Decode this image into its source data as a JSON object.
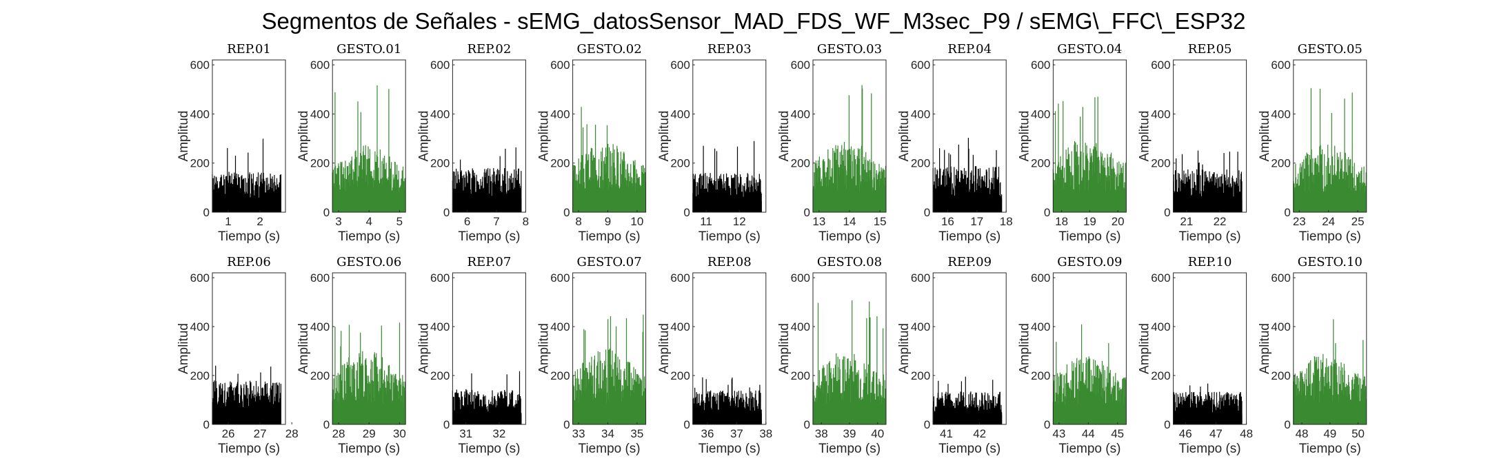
{
  "figure_title": "Segmentos de Señales - sEMG_datosSensor_MAD_FDS_WF_M3sec_P9 / sEMG\\_FFC\\_ESP32",
  "colors": {
    "rep": "#000000",
    "gesto": "#3a8a32",
    "axis": "#262626"
  },
  "chart_data": [
    {
      "type": "bar",
      "title": "REP_01",
      "kind": "rep",
      "xlim": [
        0.5,
        2.8
      ],
      "xticks": [
        1,
        2
      ],
      "ylim": [
        0,
        620
      ],
      "yticks": [
        0,
        200,
        400,
        600
      ],
      "xlabel": "Tiempo (s)",
      "ylabel": "Amplitud",
      "envelope": {
        "base": 55,
        "noise": 110,
        "peak": 300
      },
      "seed": 11
    },
    {
      "type": "bar",
      "title": "GESTO_01",
      "kind": "gesto",
      "xlim": [
        2.8,
        5.2
      ],
      "xticks": [
        3,
        4,
        5
      ],
      "ylim": [
        0,
        620
      ],
      "yticks": [
        0,
        200,
        400,
        600
      ],
      "xlabel": "Tiempo (s)",
      "ylabel": "Amplitud",
      "envelope": {
        "base": 80,
        "noise": 200,
        "peak": 520
      },
      "seed": 12
    },
    {
      "type": "bar",
      "title": "REP_02",
      "kind": "rep",
      "xlim": [
        5.5,
        8.0
      ],
      "xticks": [
        6,
        7,
        8
      ],
      "ylim": [
        0,
        620
      ],
      "yticks": [
        0,
        200,
        400,
        600
      ],
      "xlabel": "Tiempo (s)",
      "ylabel": "Amplitud",
      "envelope": {
        "base": 60,
        "noise": 120,
        "peak": 285
      },
      "seed": 13
    },
    {
      "type": "bar",
      "title": "GESTO_02",
      "kind": "gesto",
      "xlim": [
        7.8,
        10.3
      ],
      "xticks": [
        8,
        9,
        10
      ],
      "ylim": [
        0,
        620
      ],
      "yticks": [
        0,
        200,
        400,
        600
      ],
      "xlabel": "Tiempo (s)",
      "ylabel": "Amplitud",
      "envelope": {
        "base": 85,
        "noise": 200,
        "peak": 460
      },
      "seed": 14
    },
    {
      "type": "bar",
      "title": "REP_03",
      "kind": "rep",
      "xlim": [
        10.6,
        12.8
      ],
      "xticks": [
        11,
        12
      ],
      "ylim": [
        0,
        620
      ],
      "yticks": [
        0,
        200,
        400,
        600
      ],
      "xlabel": "Tiempo (s)",
      "ylabel": "Amplitud",
      "envelope": {
        "base": 50,
        "noise": 110,
        "peak": 295
      },
      "seed": 15
    },
    {
      "type": "bar",
      "title": "GESTO_03",
      "kind": "gesto",
      "xlim": [
        12.8,
        15.2
      ],
      "xticks": [
        13,
        14,
        15
      ],
      "ylim": [
        0,
        620
      ],
      "yticks": [
        0,
        200,
        400,
        600
      ],
      "xlabel": "Tiempo (s)",
      "ylabel": "Amplitud",
      "envelope": {
        "base": 85,
        "noise": 210,
        "peak": 525
      },
      "seed": 16
    },
    {
      "type": "bar",
      "title": "REP_04",
      "kind": "rep",
      "xlim": [
        15.5,
        18.0
      ],
      "xticks": [
        16,
        17,
        18
      ],
      "ylim": [
        0,
        620
      ],
      "yticks": [
        0,
        200,
        400,
        600
      ],
      "xlabel": "Tiempo (s)",
      "ylabel": "Amplitud",
      "envelope": {
        "base": 60,
        "noise": 130,
        "peak": 310
      },
      "seed": 17
    },
    {
      "type": "bar",
      "title": "GESTO_04",
      "kind": "gesto",
      "xlim": [
        17.7,
        20.3
      ],
      "xticks": [
        18,
        19,
        20
      ],
      "ylim": [
        0,
        620
      ],
      "yticks": [
        0,
        200,
        400,
        600
      ],
      "xlabel": "Tiempo (s)",
      "ylabel": "Amplitud",
      "envelope": {
        "base": 85,
        "noise": 220,
        "peak": 500
      },
      "seed": 18
    },
    {
      "type": "bar",
      "title": "REP_05",
      "kind": "rep",
      "xlim": [
        20.6,
        22.8
      ],
      "xticks": [
        21,
        22
      ],
      "ylim": [
        0,
        620
      ],
      "yticks": [
        0,
        200,
        400,
        600
      ],
      "xlabel": "Tiempo (s)",
      "ylabel": "Amplitud",
      "envelope": {
        "base": 55,
        "noise": 120,
        "peak": 255
      },
      "seed": 19
    },
    {
      "type": "bar",
      "title": "GESTO_05",
      "kind": "gesto",
      "xlim": [
        22.8,
        25.3
      ],
      "xticks": [
        23,
        24,
        25
      ],
      "ylim": [
        0,
        620
      ],
      "yticks": [
        0,
        200,
        400,
        600
      ],
      "xlabel": "Tiempo (s)",
      "ylabel": "Amplitud",
      "envelope": {
        "base": 80,
        "noise": 200,
        "peak": 515
      },
      "seed": 20
    },
    {
      "type": "bar",
      "title": "REP_06",
      "kind": "rep",
      "xlim": [
        25.5,
        27.8
      ],
      "xticks": [
        26,
        27,
        28
      ],
      "ylim": [
        0,
        620
      ],
      "yticks": [
        0,
        200,
        400,
        600
      ],
      "xlabel": "Tiempo (s)",
      "ylabel": "Amplitud",
      "envelope": {
        "base": 60,
        "noise": 120,
        "peak": 265
      },
      "seed": 21
    },
    {
      "type": "bar",
      "title": "GESTO_06",
      "kind": "gesto",
      "xlim": [
        27.8,
        30.2
      ],
      "xticks": [
        28,
        29,
        30
      ],
      "ylim": [
        0,
        620
      ],
      "yticks": [
        0,
        200,
        400,
        600
      ],
      "xlabel": "Tiempo (s)",
      "ylabel": "Amplitud",
      "envelope": {
        "base": 85,
        "noise": 220,
        "peak": 420
      },
      "seed": 22
    },
    {
      "type": "bar",
      "title": "REP_07",
      "kind": "rep",
      "xlim": [
        30.6,
        32.8
      ],
      "xticks": [
        31,
        32
      ],
      "ylim": [
        0,
        620
      ],
      "yticks": [
        0,
        200,
        400,
        600
      ],
      "xlabel": "Tiempo (s)",
      "ylabel": "Amplitud",
      "envelope": {
        "base": 45,
        "noise": 100,
        "peak": 230
      },
      "seed": 23
    },
    {
      "type": "bar",
      "title": "GESTO_07",
      "kind": "gesto",
      "xlim": [
        32.8,
        35.3
      ],
      "xticks": [
        33,
        34,
        35
      ],
      "ylim": [
        0,
        620
      ],
      "yticks": [
        0,
        200,
        400,
        600
      ],
      "xlabel": "Tiempo (s)",
      "ylabel": "Amplitud",
      "envelope": {
        "base": 85,
        "noise": 230,
        "peak": 470
      },
      "seed": 24
    },
    {
      "type": "bar",
      "title": "REP_08",
      "kind": "rep",
      "xlim": [
        35.5,
        38.0
      ],
      "xticks": [
        36,
        37,
        38
      ],
      "ylim": [
        0,
        620
      ],
      "yticks": [
        0,
        200,
        400,
        600
      ],
      "xlabel": "Tiempo (s)",
      "ylabel": "Amplitud",
      "envelope": {
        "base": 50,
        "noise": 90,
        "peak": 195
      },
      "seed": 25
    },
    {
      "type": "bar",
      "title": "GESTO_08",
      "kind": "gesto",
      "xlim": [
        37.7,
        40.3
      ],
      "xticks": [
        38,
        39,
        40
      ],
      "ylim": [
        0,
        620
      ],
      "yticks": [
        0,
        200,
        400,
        600
      ],
      "xlabel": "Tiempo (s)",
      "ylabel": "Amplitud",
      "envelope": {
        "base": 85,
        "noise": 220,
        "peak": 510
      },
      "seed": 26
    },
    {
      "type": "bar",
      "title": "REP_09",
      "kind": "rep",
      "xlim": [
        40.6,
        42.8
      ],
      "xticks": [
        41,
        42
      ],
      "ylim": [
        0,
        620
      ],
      "yticks": [
        0,
        200,
        400,
        600
      ],
      "xlabel": "Tiempo (s)",
      "ylabel": "Amplitud",
      "envelope": {
        "base": 45,
        "noise": 90,
        "peak": 195
      },
      "seed": 27
    },
    {
      "type": "bar",
      "title": "GESTO_09",
      "kind": "gesto",
      "xlim": [
        42.8,
        45.3
      ],
      "xticks": [
        43,
        44,
        45
      ],
      "ylim": [
        0,
        620
      ],
      "yticks": [
        0,
        200,
        400,
        600
      ],
      "xlabel": "Tiempo (s)",
      "ylabel": "Amplitud",
      "envelope": {
        "base": 80,
        "noise": 210,
        "peak": 430
      },
      "seed": 28
    },
    {
      "type": "bar",
      "title": "REP_10",
      "kind": "rep",
      "xlim": [
        45.6,
        48.0
      ],
      "xticks": [
        46,
        47,
        48
      ],
      "ylim": [
        0,
        620
      ],
      "yticks": [
        0,
        200,
        400,
        600
      ],
      "xlabel": "Tiempo (s)",
      "ylabel": "Amplitud",
      "envelope": {
        "base": 45,
        "noise": 90,
        "peak": 170
      },
      "seed": 29
    },
    {
      "type": "bar",
      "title": "GESTO_10",
      "kind": "gesto",
      "xlim": [
        47.7,
        50.3
      ],
      "xticks": [
        48,
        49,
        50
      ],
      "ylim": [
        0,
        620
      ],
      "yticks": [
        0,
        200,
        400,
        600
      ],
      "xlabel": "Tiempo (s)",
      "ylabel": "Amplitud",
      "envelope": {
        "base": 85,
        "noise": 210,
        "peak": 440
      },
      "seed": 30
    }
  ]
}
